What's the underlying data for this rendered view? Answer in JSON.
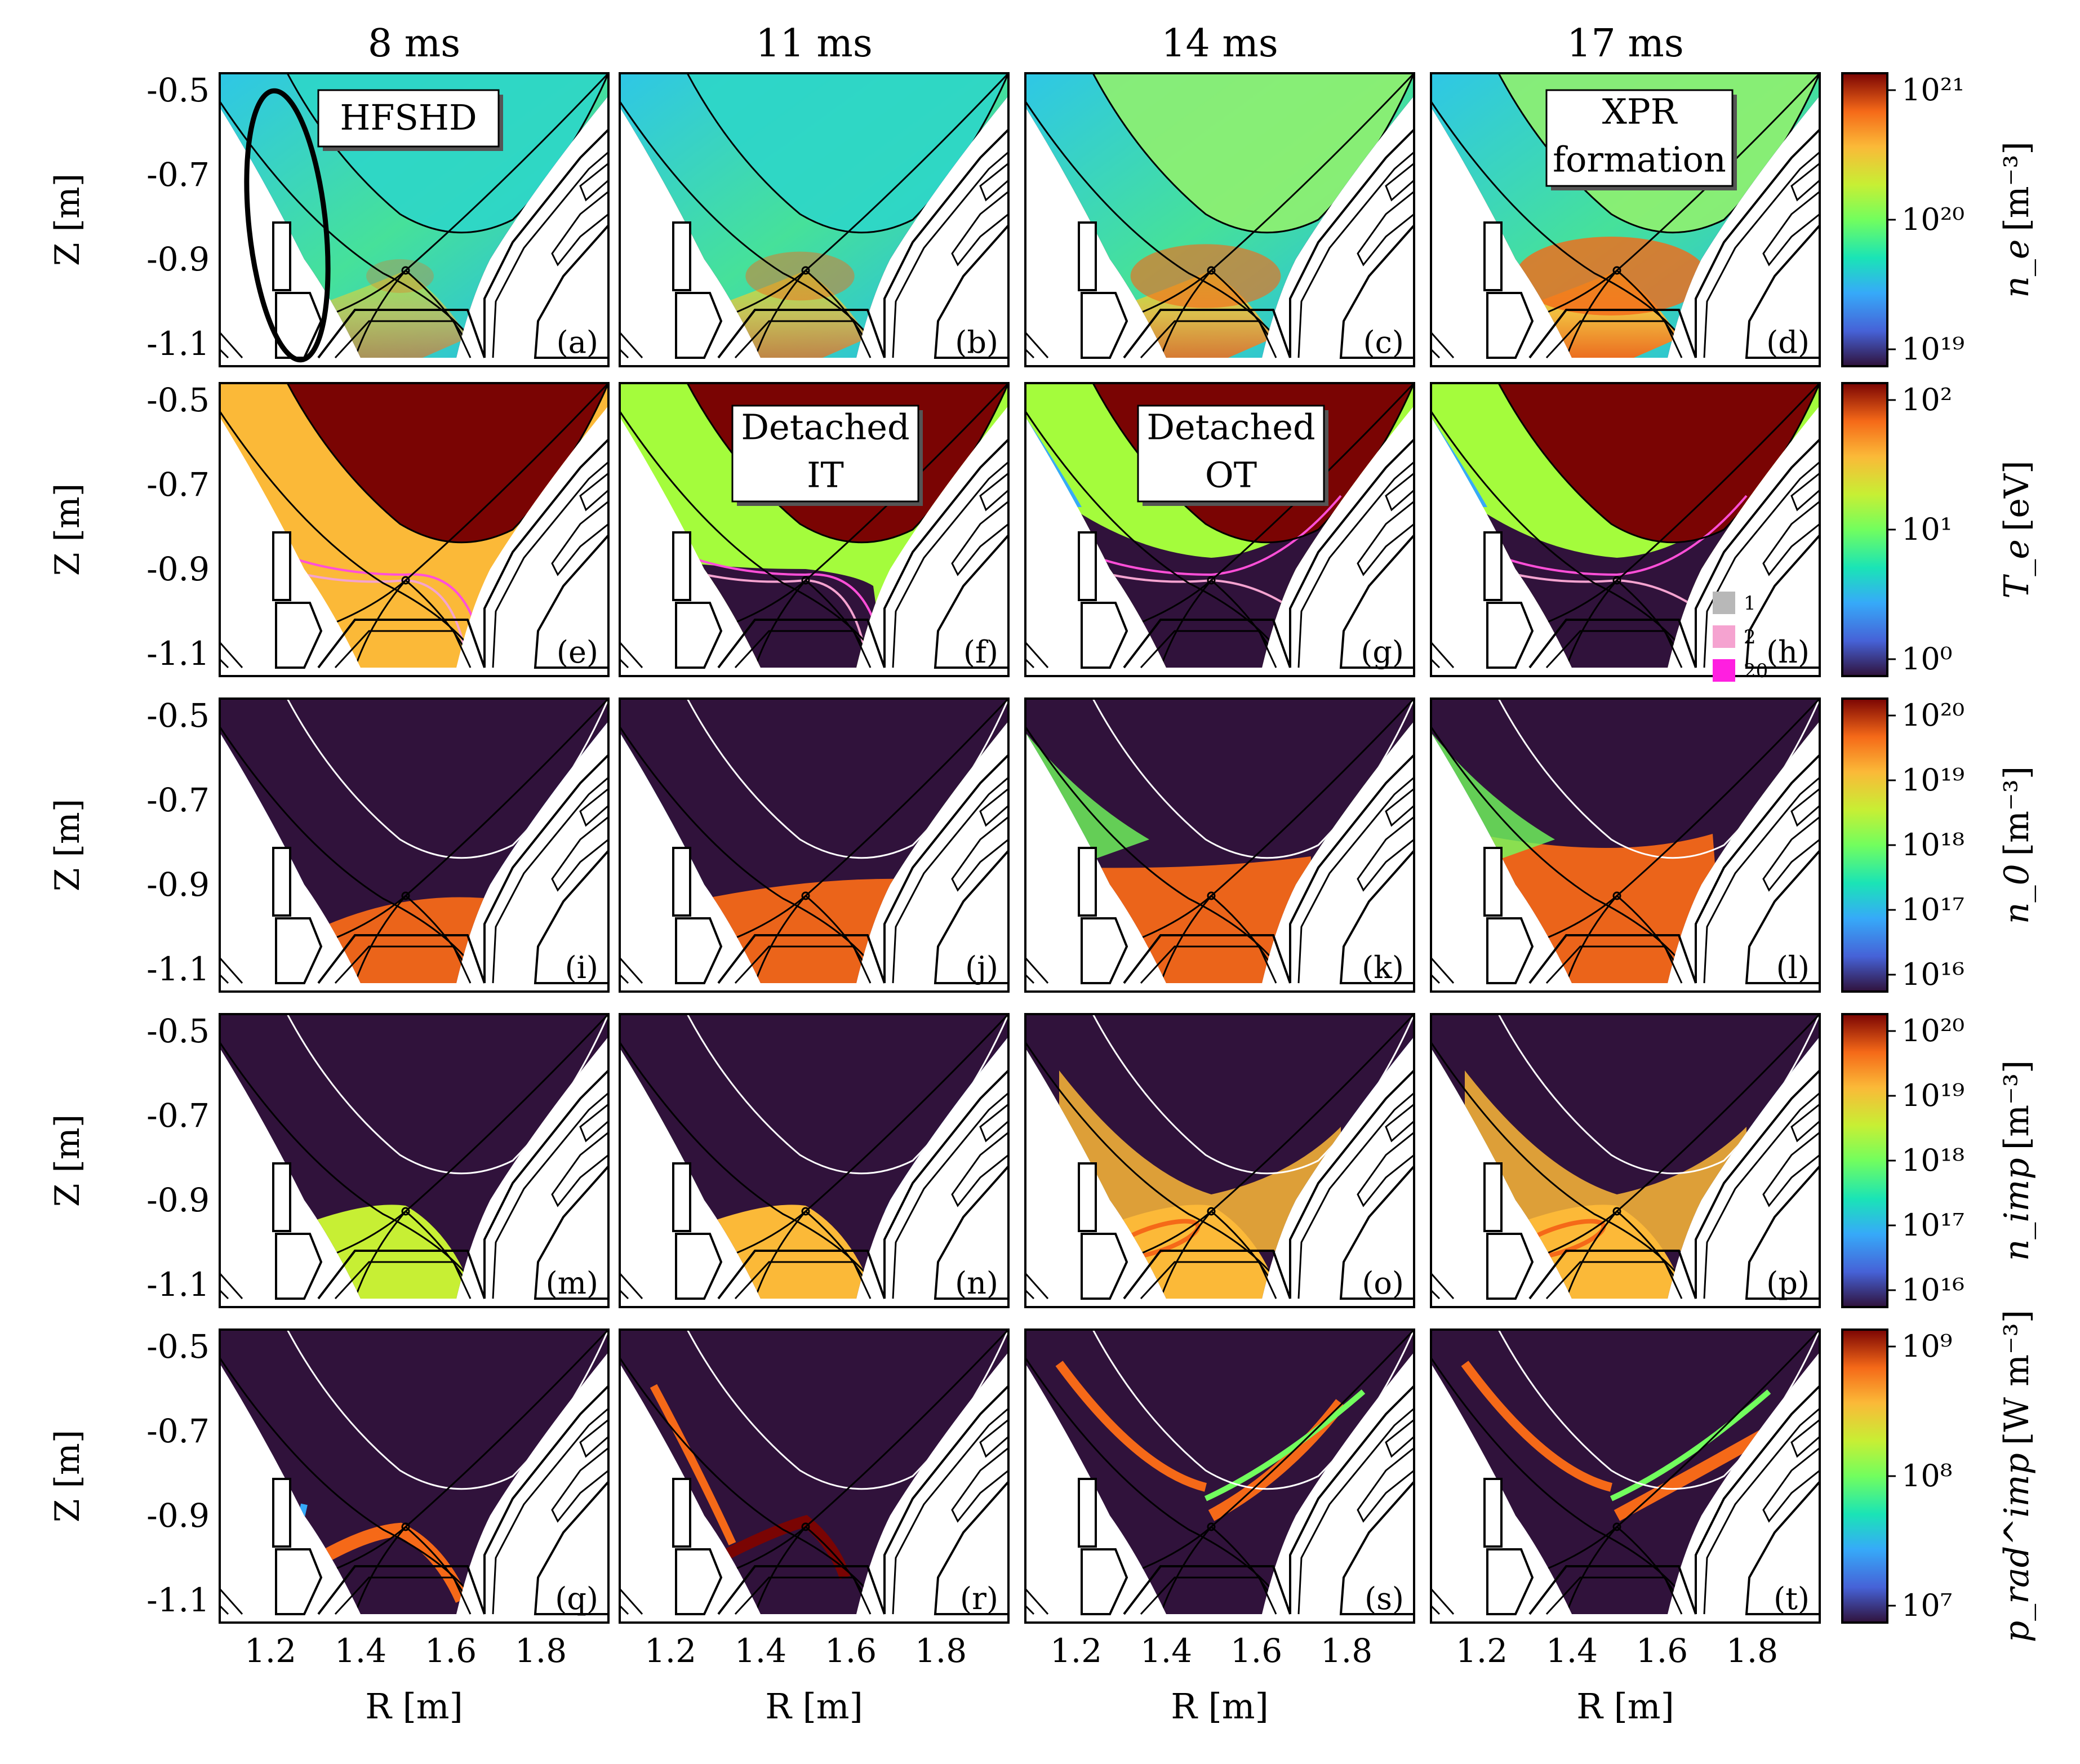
{
  "columns": [
    "8 ms",
    "11 ms",
    "14 ms",
    "17 ms"
  ],
  "axes": {
    "ylabel": "Z [m]",
    "xlabel": "R [m]",
    "yticks": [
      "-0.5",
      "-0.7",
      "-0.9",
      "-1.1"
    ],
    "xticks": [
      "1.2",
      "1.4",
      "1.6",
      "1.8"
    ]
  },
  "rows": [
    {
      "quantity": "n_e",
      "unit": "[m⁻³]",
      "cbar_ticks": [
        "10²¹",
        "10²⁰",
        "10¹⁹"
      ],
      "panels": [
        "(a)",
        "(b)",
        "(c)",
        "(d)"
      ]
    },
    {
      "quantity": "T_e",
      "unit": "[eV]",
      "cbar_ticks": [
        "10²",
        "10¹",
        "10⁰"
      ],
      "panels": [
        "(e)",
        "(f)",
        "(g)",
        "(h)"
      ]
    },
    {
      "quantity": "n_0",
      "unit": "[m⁻³]",
      "cbar_ticks": [
        "10²⁰",
        "10¹⁹",
        "10¹⁸",
        "10¹⁷",
        "10¹⁶"
      ],
      "panels": [
        "(i)",
        "(j)",
        "(k)",
        "(l)"
      ]
    },
    {
      "quantity": "n_imp",
      "unit": "[m⁻³]",
      "cbar_ticks": [
        "10²⁰",
        "10¹⁹",
        "10¹⁸",
        "10¹⁷",
        "10¹⁶"
      ],
      "panels": [
        "(m)",
        "(n)",
        "(o)",
        "(p)"
      ]
    },
    {
      "quantity": "p_rad^imp",
      "unit": "[W m⁻³]",
      "cbar_ticks": [
        "10⁹",
        "10⁸",
        "10⁷"
      ],
      "panels": [
        "(q)",
        "(r)",
        "(s)",
        "(t)"
      ]
    }
  ],
  "annotations": {
    "hfshd": "HFSHD",
    "xpr_1": "XPR",
    "xpr_2": "formation",
    "detached_it_1": "Detached",
    "detached_it_2": "IT",
    "detached_ot_1": "Detached",
    "detached_ot_2": "OT"
  },
  "te_legend": [
    "1",
    "2",
    "20"
  ],
  "colors": {
    "low": "#30123b",
    "mid": "#a4fc3c",
    "high": "#7a0403"
  }
}
